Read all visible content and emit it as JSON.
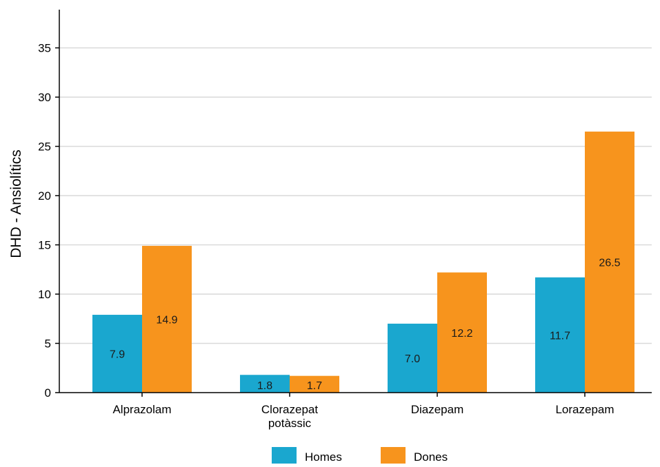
{
  "chart_data": {
    "type": "bar",
    "title": "",
    "xlabel": "",
    "ylabel": "DHD - Ansiolítics",
    "categories": [
      [
        "Alprazolam"
      ],
      [
        "Clorazepat",
        "potàssic"
      ],
      [
        "Diazepam"
      ],
      [
        "Lorazepam"
      ]
    ],
    "series": [
      {
        "name": "Homes",
        "color": "#1aa7cf",
        "values": [
          7.9,
          1.8,
          7.0,
          11.7
        ],
        "labels": [
          "7.9",
          "1.8",
          "7.0",
          "11.7"
        ]
      },
      {
        "name": "Dones",
        "color": "#f7941d",
        "values": [
          14.9,
          1.7,
          12.2,
          26.5
        ],
        "labels": [
          "14.9",
          "1.7",
          "12.2",
          "26.5"
        ]
      }
    ],
    "ylim": [
      0,
      38
    ],
    "yticks": [
      0,
      5,
      10,
      15,
      20,
      25,
      30,
      35
    ],
    "grid": true,
    "legend_position": "bottom"
  }
}
